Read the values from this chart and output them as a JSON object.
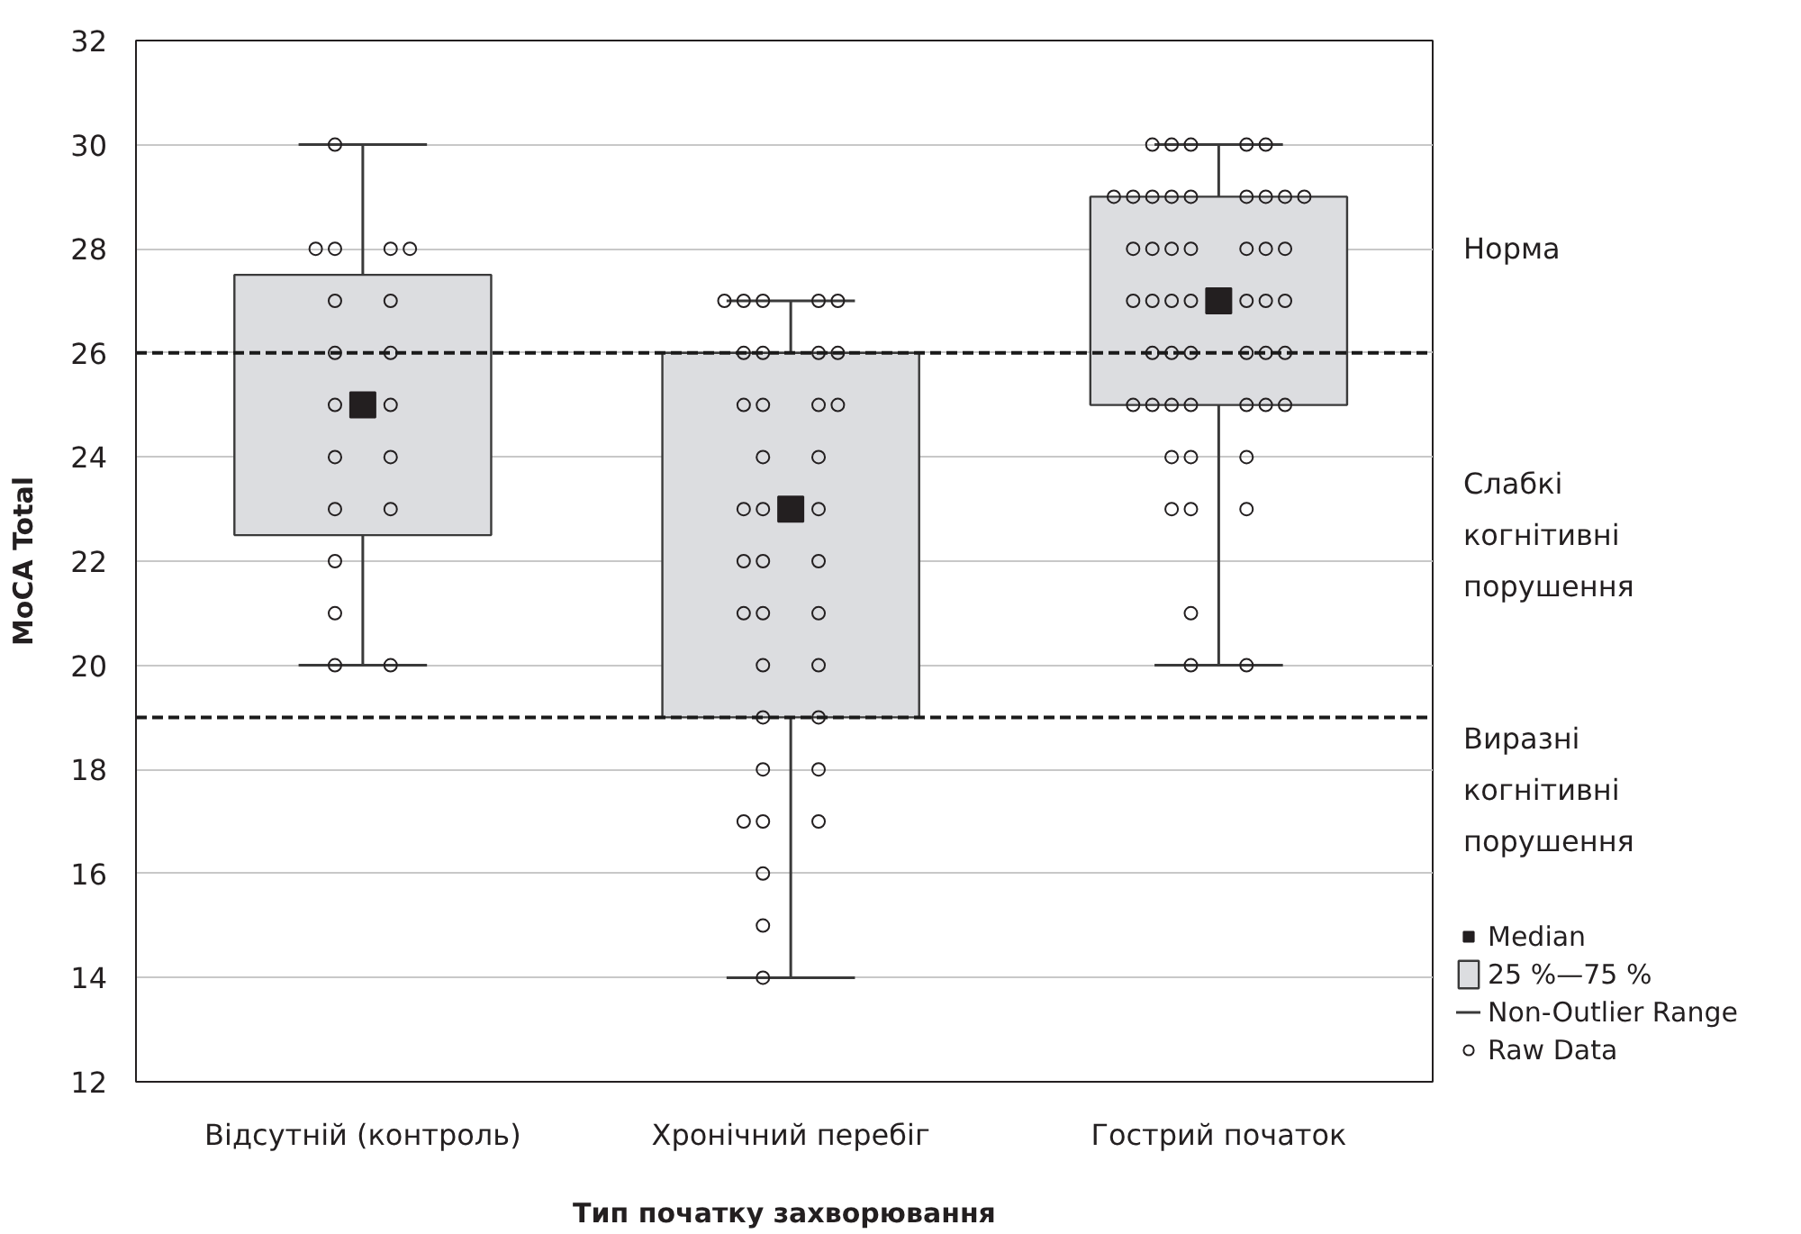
{
  "chart_data": {
    "type": "box",
    "xlabel": "Тип початку захворювання",
    "ylabel": "MoCA Total",
    "categories": [
      "Відсутній (контроль)",
      "Хронічний перебіг",
      "Гострий початок"
    ],
    "ylim": [
      12,
      32
    ],
    "yticks": [
      12,
      14,
      16,
      18,
      20,
      22,
      24,
      26,
      28,
      30,
      32
    ],
    "grid": "y",
    "legend": "bottom right",
    "ref_lines": [
      {
        "axis": "y",
        "value": 26,
        "color": "#1a1a1a",
        "line_style": "dashed"
      },
      {
        "axis": "y",
        "value": 19,
        "color": "#1a1a1a",
        "line_style": "dashed"
      }
    ],
    "annotations": [
      "Норма",
      "Слабкі когнітивні порушення",
      "Виразні когнітивні порушення",
      "Median",
      "Non-Outlier Range"
    ],
    "series": [
      {
        "name": "25 %—75 %",
        "color": "#dcdde0",
        "marker": "square",
        "boxes": [
          {
            "low": 20,
            "q1": 22.5,
            "median": 25,
            "q3": 27.5,
            "high": 30
          },
          {
            "low": 14,
            "q1": 19,
            "median": 23,
            "q3": 26,
            "high": 27
          },
          {
            "low": 20,
            "q1": 25,
            "median": 27,
            "q3": 29,
            "high": 30
          }
        ]
      },
      {
        "type": "scatter",
        "name": "Raw Data",
        "color": "#231f20",
        "marker": "circle",
        "x": [
          "Відсутній (контроль)",
          "Відсутній (контроль)",
          "Відсутній (контроль)",
          "Відсутній (контроль)",
          "Відсутній (контроль)",
          "Відсутній (контроль)",
          "Відсутній (контроль)",
          "Відсутній (контроль)",
          "Відсутній (контроль)",
          "Відсутній (контроль)",
          "Відсутній (контроль)",
          "Відсутній (контроль)",
          "Відсутній (контроль)",
          "Відсутній (контроль)",
          "Відсутній (контроль)",
          "Відсутній (контроль)",
          "Відсутній (контроль)",
          "Відсутній (контроль)",
          "Відсутній (контроль)",
          "Хронічний перебіг",
          "Хронічний перебіг",
          "Хронічний перебіг",
          "Хронічний перебіг",
          "Хронічний перебіг",
          "Хронічний перебіг",
          "Хронічний перебіг",
          "Хронічний перебіг",
          "Хронічний перебіг",
          "Хронічний перебіг",
          "Хронічний перебіг",
          "Хронічний перебіг",
          "Хронічний перебіг",
          "Хронічний перебіг",
          "Хронічний перебіг",
          "Хронічний перебіг",
          "Хронічний перебіг",
          "Хронічний перебіг",
          "Хронічний перебіг",
          "Хронічний перебіг",
          "Хронічний перебіг",
          "Хронічний перебіг",
          "Хронічний перебіг",
          "Хронічний перебіг",
          "Хронічний перебіг",
          "Хронічний перебіг",
          "Хронічний перебіг",
          "Хронічний перебіг",
          "Хронічний перебіг",
          "Хронічний перебіг",
          "Хронічний перебіг",
          "Хронічний перебіг",
          "Хронічний перебіг",
          "Хронічний перебіг",
          "Хронічний перебіг",
          "Хронічний перебіг",
          "Гострий початок",
          "Гострий початок",
          "Гострий початок",
          "Гострий початок",
          "Гострий початок",
          "Гострий початок",
          "Гострий початок",
          "Гострий початок",
          "Гострий початок",
          "Гострий початок",
          "Гострий початок",
          "Гострий початок",
          "Гострий початок",
          "Гострий початок",
          "Гострий початок",
          "Гострий початок",
          "Гострий початок",
          "Гострий початок",
          "Гострий початок",
          "Гострий початок",
          "Гострий початок",
          "Гострий початок",
          "Гострий початок",
          "Гострий початок",
          "Гострий початок",
          "Гострий початок",
          "Гострий початок",
          "Гострий початок",
          "Гострий початок",
          "Гострий початок",
          "Гострий початок",
          "Гострий початок",
          "Гострий початок",
          "Гострий початок",
          "Гострий початок",
          "Гострий початок",
          "Гострий початок",
          "Гострий початок",
          "Гострий початок",
          "Гострий початок",
          "Гострий початок",
          "Гострий початок",
          "Гострий початок",
          "Гострий початок",
          "Гострий початок",
          "Гострий початок",
          "Гострий початок",
          "Гострий початок",
          "Гострий початок",
          "Гострий початок"
        ],
        "values": [
          30,
          28,
          28,
          28,
          28,
          27,
          27,
          26,
          26,
          25,
          25,
          24,
          24,
          23,
          23,
          22,
          21,
          20,
          20,
          27,
          27,
          27,
          27,
          27,
          26,
          26,
          26,
          26,
          25,
          25,
          25,
          25,
          24,
          24,
          23,
          23,
          23,
          22,
          22,
          22,
          21,
          21,
          21,
          20,
          20,
          19,
          19,
          18,
          18,
          17,
          17,
          17,
          16,
          15,
          14,
          30,
          30,
          30,
          30,
          30,
          29,
          29,
          29,
          29,
          29,
          29,
          29,
          29,
          29,
          28,
          28,
          28,
          28,
          28,
          28,
          28,
          27,
          27,
          27,
          27,
          27,
          27,
          27,
          26,
          26,
          26,
          26,
          26,
          26,
          25,
          25,
          25,
          25,
          25,
          25,
          25,
          24,
          24,
          24,
          23,
          23,
          23,
          21,
          20,
          20
        ]
      }
    ]
  }
}
